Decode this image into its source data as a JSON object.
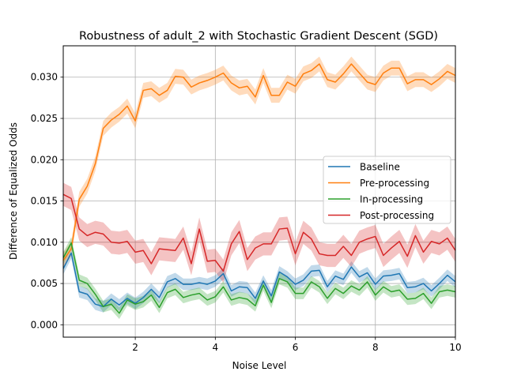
{
  "chart_data": {
    "type": "line",
    "title": "Robustness of adult_2 with Stochastic Gradient Descent (SGD)",
    "xlabel": "Noise Level",
    "ylabel": "Difference of Equalized Odds",
    "xlim": [
      0.2,
      10.0
    ],
    "ylim": [
      -0.0015,
      0.0338
    ],
    "x_ticks": [
      2,
      4,
      6,
      8,
      10
    ],
    "x_tick_labels": [
      "2",
      "4",
      "6",
      "8",
      "10"
    ],
    "y_ticks": [
      0.0,
      0.005,
      0.01,
      0.015,
      0.02,
      0.025,
      0.03
    ],
    "y_tick_labels": [
      "0.000",
      "0.005",
      "0.010",
      "0.015",
      "0.020",
      "0.025",
      "0.030"
    ],
    "grid": true,
    "legend_position": "center-right",
    "x": [
      0.2,
      0.4,
      0.6,
      0.8,
      1.0,
      1.2,
      1.4,
      1.6,
      1.8,
      2.0,
      2.2,
      2.4,
      2.6,
      2.8,
      3.0,
      3.2,
      3.4,
      3.6,
      3.8,
      4.0,
      4.2,
      4.4,
      4.6,
      4.8,
      5.0,
      5.2,
      5.4,
      5.6,
      5.8,
      6.0,
      6.2,
      6.4,
      6.6,
      6.8,
      7.0,
      7.2,
      7.4,
      7.6,
      7.8,
      8.0,
      8.2,
      8.4,
      8.6,
      8.8,
      9.0,
      9.2,
      9.4,
      9.6,
      9.8,
      10.0
    ],
    "series": [
      {
        "name": "Baseline",
        "color": "#1f77b4",
        "band": 0.0007,
        "values": [
          0.0068,
          0.0087,
          0.004,
          0.0037,
          0.0025,
          0.0022,
          0.0031,
          0.0024,
          0.0032,
          0.0026,
          0.0033,
          0.0043,
          0.0033,
          0.0052,
          0.0056,
          0.0049,
          0.0049,
          0.0051,
          0.0049,
          0.0053,
          0.0062,
          0.0041,
          0.0046,
          0.0045,
          0.0032,
          0.0053,
          0.0035,
          0.0064,
          0.0058,
          0.0049,
          0.0054,
          0.0065,
          0.0066,
          0.0046,
          0.0059,
          0.0055,
          0.007,
          0.0058,
          0.0063,
          0.0049,
          0.0059,
          0.006,
          0.0062,
          0.0045,
          0.0046,
          0.005,
          0.0041,
          0.005,
          0.006,
          0.0052
        ]
      },
      {
        "name": "Pre-processing",
        "color": "#ff7f0e",
        "band": 0.0009,
        "values": [
          0.0078,
          0.0092,
          0.0152,
          0.0168,
          0.0195,
          0.0238,
          0.0248,
          0.0255,
          0.0265,
          0.0247,
          0.0284,
          0.0286,
          0.0278,
          0.0284,
          0.0301,
          0.03,
          0.0288,
          0.0293,
          0.0296,
          0.03,
          0.0305,
          0.0293,
          0.0287,
          0.0289,
          0.0276,
          0.0302,
          0.0278,
          0.0278,
          0.0294,
          0.0289,
          0.0304,
          0.0308,
          0.0316,
          0.0297,
          0.0294,
          0.0304,
          0.0316,
          0.0305,
          0.0294,
          0.0291,
          0.0305,
          0.0311,
          0.0311,
          0.0292,
          0.0297,
          0.0297,
          0.0291,
          0.0298,
          0.0307,
          0.0302
        ]
      },
      {
        "name": "In-processing",
        "color": "#2ca02c",
        "band": 0.0007,
        "values": [
          0.0081,
          0.0099,
          0.0054,
          0.005,
          0.0037,
          0.0022,
          0.0025,
          0.0014,
          0.003,
          0.0025,
          0.0028,
          0.0036,
          0.0021,
          0.0039,
          0.0043,
          0.0033,
          0.0036,
          0.0038,
          0.003,
          0.0034,
          0.0046,
          0.003,
          0.0033,
          0.0031,
          0.0023,
          0.0048,
          0.0027,
          0.0056,
          0.0052,
          0.0038,
          0.0038,
          0.0052,
          0.0046,
          0.0032,
          0.0044,
          0.0038,
          0.0047,
          0.0042,
          0.0052,
          0.0036,
          0.0046,
          0.004,
          0.0042,
          0.0031,
          0.0032,
          0.0038,
          0.0026,
          0.004,
          0.0042,
          0.004
        ]
      },
      {
        "name": "Post-processing",
        "color": "#d62728",
        "band": 0.0014,
        "values": [
          0.0158,
          0.0153,
          0.0116,
          0.0108,
          0.0112,
          0.011,
          0.01,
          0.0099,
          0.0101,
          0.0088,
          0.009,
          0.0074,
          0.0092,
          0.0091,
          0.009,
          0.0105,
          0.0074,
          0.0116,
          0.0077,
          0.0078,
          0.0065,
          0.0098,
          0.0113,
          0.0079,
          0.0093,
          0.0098,
          0.0098,
          0.0116,
          0.0117,
          0.0086,
          0.0112,
          0.0104,
          0.0086,
          0.0084,
          0.0084,
          0.0095,
          0.0084,
          0.01,
          0.0104,
          0.0107,
          0.0084,
          0.0093,
          0.0101,
          0.0083,
          0.0108,
          0.0088,
          0.0101,
          0.0098,
          0.0105,
          0.009
        ]
      }
    ]
  }
}
